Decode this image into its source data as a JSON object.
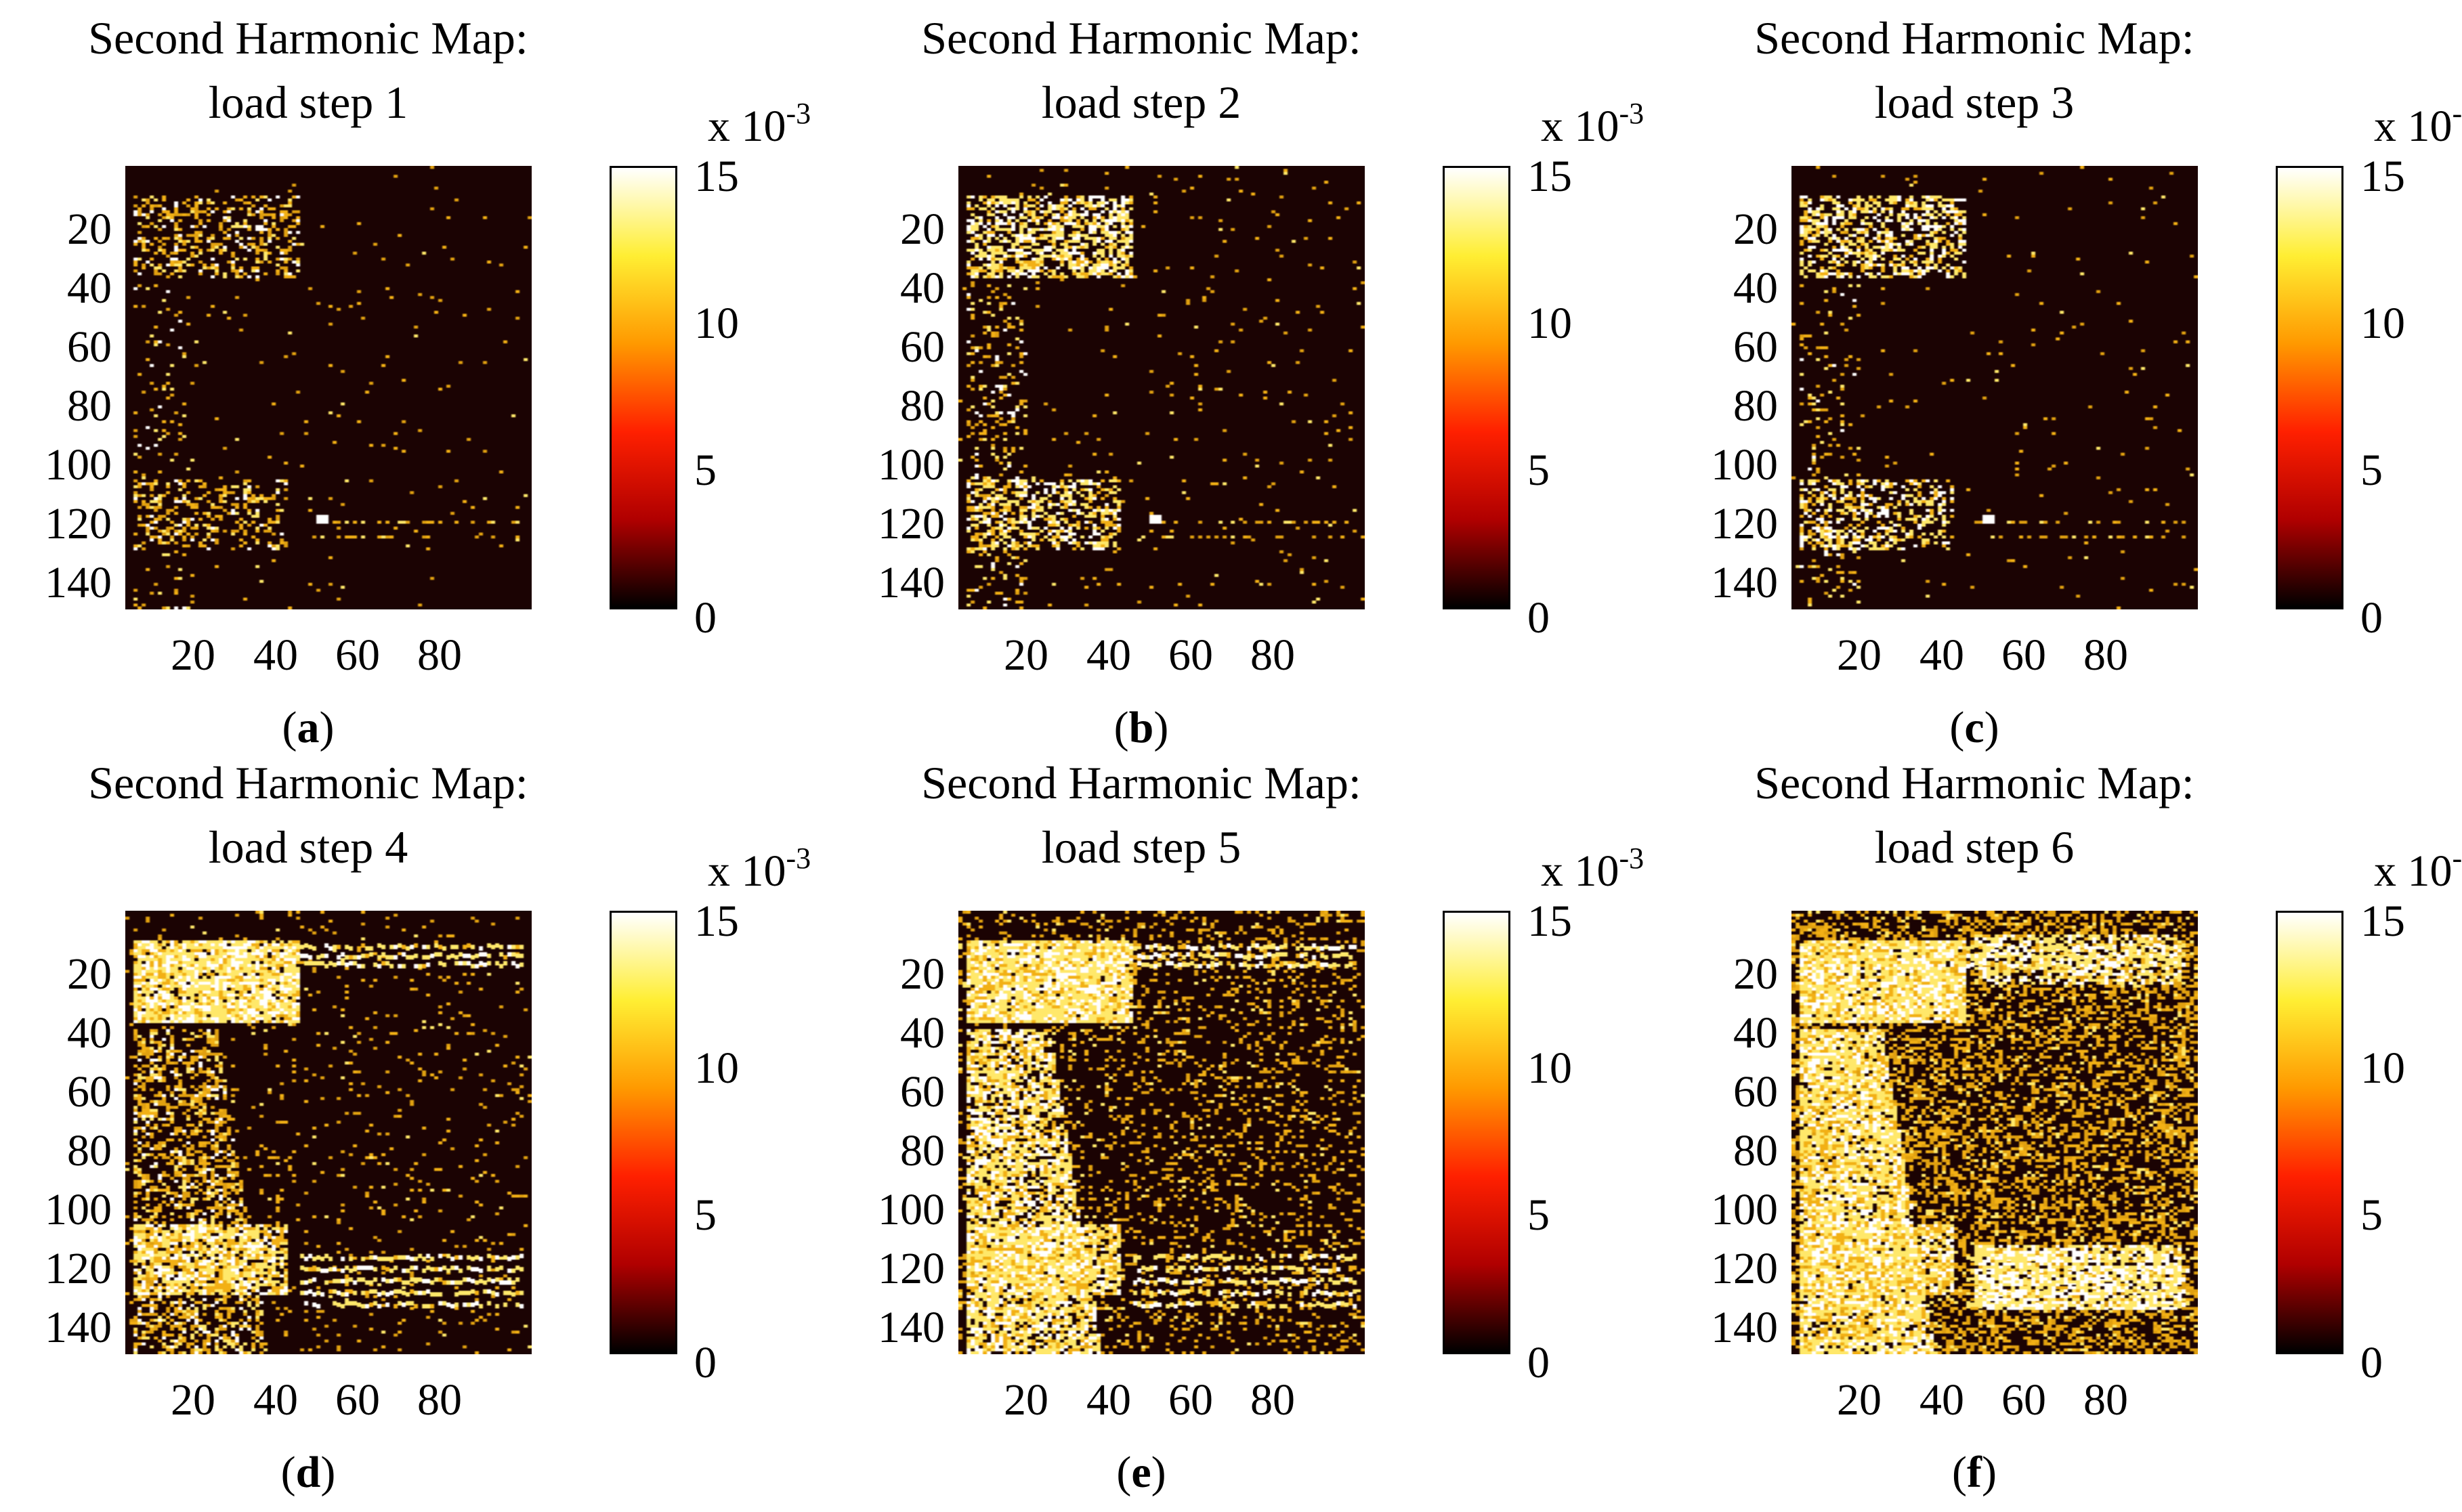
{
  "chart_data": {
    "type": "heatmap",
    "title_line1": "Second Harmonic Map:",
    "y_ticks": [
      "20",
      "40",
      "60",
      "80",
      "100",
      "120",
      "140"
    ],
    "x_ticks": [
      "20",
      "40",
      "60",
      "80"
    ],
    "x_range": [
      1,
      100
    ],
    "y_range": [
      1,
      150
    ],
    "colorbar": {
      "multiplier_base": "x 10",
      "multiplier_exp": "-3",
      "ticks": [
        "15",
        "10",
        "5",
        "0"
      ],
      "range": [
        0,
        15
      ],
      "colormap": "hot",
      "colors": [
        "#000000",
        "#b00000",
        "#ff2000",
        "#ff9900",
        "#ffee33",
        "#ffffff"
      ]
    },
    "panels": [
      {
        "title": "load step 1",
        "label_open": "(",
        "label": "a",
        "label_close": ")",
        "intensity": 1
      },
      {
        "title": "load step 2",
        "label_open": "(",
        "label": "b",
        "label_close": ")",
        "intensity": 2
      },
      {
        "title": "load step 3",
        "label_open": "(",
        "label": "c",
        "label_close": ")",
        "intensity": 3
      },
      {
        "title": "load step 4",
        "label_open": "(",
        "label": "d",
        "label_close": ")",
        "intensity": 4
      },
      {
        "title": "load step 5",
        "label_open": "(",
        "label": "e",
        "label_close": ")",
        "intensity": 5
      },
      {
        "title": "load step 6",
        "label_open": "(",
        "label": "f",
        "label_close": ")",
        "intensity": 6
      }
    ]
  }
}
